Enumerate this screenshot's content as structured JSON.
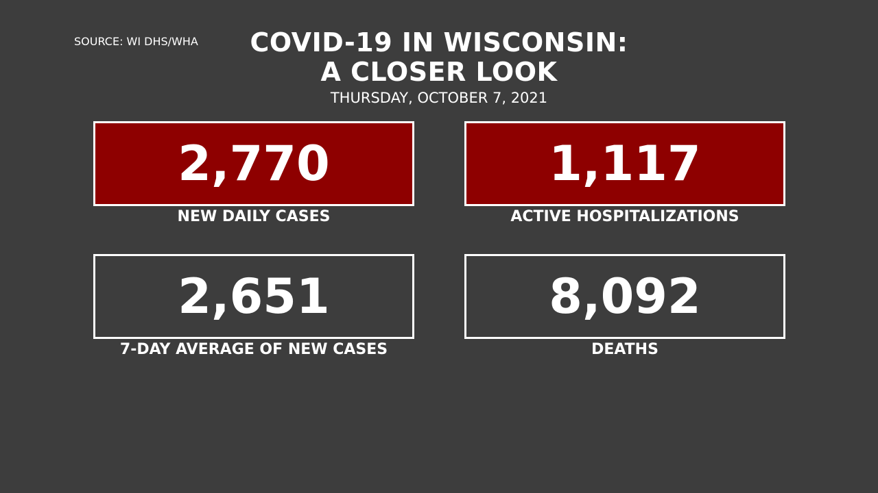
{
  "header": {
    "source": "SOURCE: WI DHS/WHA",
    "title_lines": [
      "COVID-19 IN WISCONSIN:",
      "A CLOSER LOOK"
    ],
    "date": "THURSDAY, OCTOBER 7, 2021"
  },
  "stats": [
    {
      "value": "2,770",
      "label": "NEW DAILY CASES",
      "highlight": true
    },
    {
      "value": "1,117",
      "label": "ACTIVE HOSPITALIZATIONS",
      "highlight": true
    },
    {
      "value": "2,651",
      "label": "7-DAY AVERAGE OF NEW CASES",
      "highlight": false
    },
    {
      "value": "8,092",
      "label": "DEATHS",
      "highlight": false
    }
  ]
}
